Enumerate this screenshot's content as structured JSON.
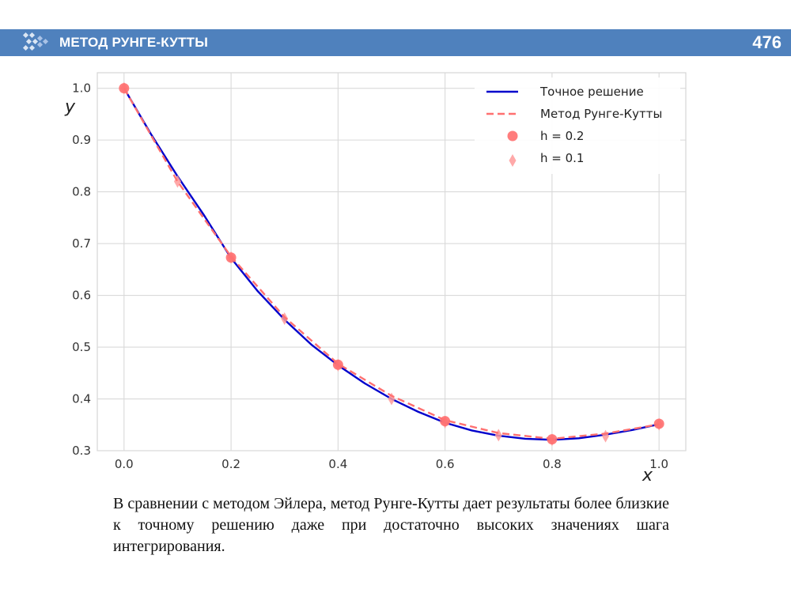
{
  "header": {
    "section_title": "МЕТОД РУНГЕ-КУТТЫ",
    "page_number": "476",
    "bar_color": "#4f81bd",
    "logo_icon": "arrow-dots-logo-icon"
  },
  "chart_data": {
    "type": "line",
    "xlabel": "x",
    "ylabel": "y",
    "xlim": [
      -0.05,
      1.05
    ],
    "ylim": [
      0.3,
      1.03
    ],
    "xticks": [
      0.0,
      0.2,
      0.4,
      0.6,
      0.8,
      1.0
    ],
    "xtick_labels": [
      "0.0",
      "0.2",
      "0.4",
      "0.6",
      "0.8",
      "1.0"
    ],
    "yticks": [
      0.3,
      0.4,
      0.5,
      0.6,
      0.7,
      0.8,
      0.9,
      1.0
    ],
    "ytick_labels": [
      "0.3",
      "0.4",
      "0.5",
      "0.6",
      "0.7",
      "0.8",
      "0.9",
      "1.0"
    ],
    "grid": true,
    "legend_position": "top-right",
    "series": [
      {
        "name": "Точное решение",
        "style": "solid-line",
        "color": "#0000cc",
        "x": [
          0.0,
          0.05,
          0.1,
          0.15,
          0.2,
          0.25,
          0.3,
          0.35,
          0.4,
          0.45,
          0.5,
          0.55,
          0.6,
          0.65,
          0.7,
          0.75,
          0.8,
          0.85,
          0.9,
          0.95,
          1.0
        ],
        "y": [
          1.0,
          0.912,
          0.83,
          0.754,
          0.672,
          0.608,
          0.553,
          0.505,
          0.465,
          0.43,
          0.4,
          0.375,
          0.354,
          0.339,
          0.329,
          0.323,
          0.321,
          0.324,
          0.331,
          0.34,
          0.351
        ]
      },
      {
        "name": "Метод Рунге-Кутты",
        "style": "dashed-line",
        "color": "#ff7070",
        "x": [
          0.0,
          0.1,
          0.2,
          0.3,
          0.4,
          0.5,
          0.6,
          0.7,
          0.8,
          0.9,
          1.0
        ],
        "y": [
          1.0,
          0.82,
          0.675,
          0.558,
          0.468,
          0.406,
          0.359,
          0.334,
          0.323,
          0.333,
          0.351
        ]
      },
      {
        "name": "h = 0.2",
        "style": "circle-markers",
        "color": "#ff6f6f",
        "x": [
          0.0,
          0.2,
          0.4,
          0.6,
          0.8,
          1.0
        ],
        "y": [
          1.0,
          0.673,
          0.466,
          0.357,
          0.322,
          0.352
        ]
      },
      {
        "name": "h = 0.1",
        "style": "diamond-markers",
        "color": "#ff9a9a",
        "x": [
          0.0,
          0.1,
          0.2,
          0.3,
          0.4,
          0.5,
          0.6,
          0.7,
          0.8,
          0.9,
          1.0
        ],
        "y": [
          1.0,
          0.82,
          0.673,
          0.555,
          0.465,
          0.4,
          0.355,
          0.33,
          0.321,
          0.328,
          0.351
        ]
      }
    ]
  },
  "caption": "В сравнении с методом Эйлера, метод Рунге-Кутты дает результаты более близкие к точному решению даже при достаточно высоких значениях шага интегрирования."
}
